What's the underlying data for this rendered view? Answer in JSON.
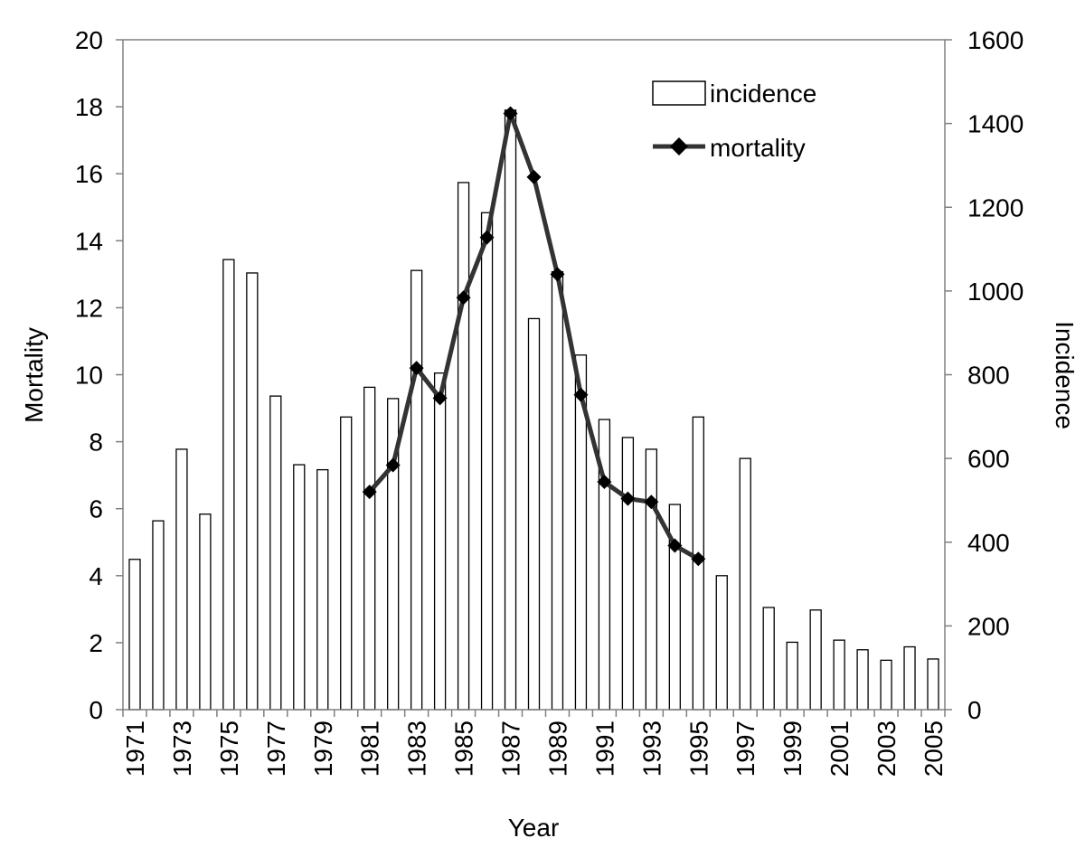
{
  "chart_data": {
    "type": "bar",
    "xlabel": "Year",
    "ylabel_left": "Mortality",
    "ylabel_right": "Incidence",
    "ylim_left": [
      0,
      20
    ],
    "ylim_right": [
      0,
      1600
    ],
    "yticks_left": [
      "0",
      "2",
      "4",
      "6",
      "8",
      "10",
      "12",
      "14",
      "16",
      "18",
      "20"
    ],
    "yticks_right": [
      "0",
      "200",
      "400",
      "600",
      "800",
      "1000",
      "1200",
      "1400",
      "1600"
    ],
    "x": [
      1971,
      1972,
      1973,
      1974,
      1975,
      1976,
      1977,
      1978,
      1979,
      1980,
      1981,
      1982,
      1983,
      1984,
      1985,
      1986,
      1987,
      1988,
      1989,
      1990,
      1991,
      1992,
      1993,
      1994,
      1995,
      1996,
      1997,
      1998,
      1999,
      2000,
      2001,
      2002,
      2003,
      2004,
      2005
    ],
    "xtick_labels": [
      "1971",
      "1973",
      "1975",
      "1977",
      "1979",
      "1981",
      "1983",
      "1985",
      "1987",
      "1989",
      "1991",
      "1993",
      "1995",
      "1997",
      "1999",
      "2001",
      "2003",
      "2005"
    ],
    "legend": {
      "position": "top-right",
      "incidence_label": "incidence",
      "mortality_label": "mortality"
    },
    "series": [
      {
        "name": "incidence",
        "kind": "bar",
        "axis": "right",
        "values": [
          359,
          451,
          622,
          467,
          1075,
          1043,
          749,
          585,
          573,
          699,
          770,
          743,
          1049,
          804,
          1259,
          1187,
          1432,
          934,
          1046,
          847,
          693,
          650,
          622,
          490,
          699,
          320,
          600,
          244,
          161,
          238,
          166,
          143,
          118,
          150,
          121
        ]
      },
      {
        "name": "mortality",
        "kind": "line",
        "axis": "left",
        "x": [
          1981,
          1982,
          1983,
          1984,
          1985,
          1986,
          1987,
          1988,
          1989,
          1990,
          1991,
          1992,
          1993,
          1994,
          1995
        ],
        "values": [
          6.5,
          7.3,
          10.2,
          9.3,
          12.3,
          14.1,
          17.8,
          15.9,
          13.0,
          9.4,
          6.8,
          6.3,
          6.2,
          4.9,
          4.5
        ]
      }
    ],
    "colors": {
      "bar_fill": "#ffffff",
      "bar_stroke": "#000000",
      "line": "#333333",
      "marker": "#000000",
      "axis": "#808080"
    }
  }
}
